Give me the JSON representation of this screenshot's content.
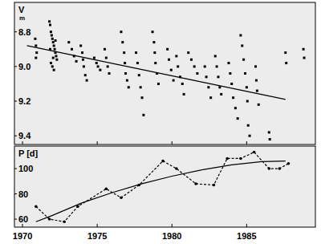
{
  "chart_data": [
    {
      "type": "scatter",
      "ylabel": "V",
      "ylabel_unit": "m",
      "xlim": [
        1969.46,
        1989.6
      ],
      "ylim": [
        9.45,
        8.63
      ],
      "xticks": [
        1970,
        1975,
        1980,
        1985
      ],
      "yticks": [
        8.8,
        {
          "value": 9,
          "label": "9.0"
        },
        9.2,
        9.4
      ],
      "tick_labels": "y",
      "series": [
        {
          "type": "scatter",
          "marker": "square",
          "color": "#000000",
          "x": [
            1970.85,
            1970.9,
            1970.95,
            1970.9,
            1971.8,
            1971.85,
            1971.9,
            1971.95,
            1972.0,
            1972.05,
            1972.1,
            1972.15,
            1972.2,
            1972.25,
            1972.3,
            1971.9,
            1972.0,
            1972.1,
            1972.2,
            1971.85,
            1972.05,
            1973.1,
            1973.3,
            1973.45,
            1973.6,
            1973.9,
            1974.0,
            1974.05,
            1974.1,
            1974.2,
            1974.3,
            1974.8,
            1974.95,
            1975.05,
            1975.2,
            1975.5,
            1975.6,
            1975.7,
            1975.8,
            1976.6,
            1976.7,
            1976.8,
            1976.85,
            1976.9,
            1977.0,
            1977.1,
            1977.6,
            1977.7,
            1977.8,
            1977.9,
            1978.0,
            1978.1,
            1978.7,
            1978.8,
            1978.85,
            1978.9,
            1979.0,
            1979.1,
            1979.7,
            1979.8,
            1979.95,
            1980.1,
            1980.3,
            1980.4,
            1980.55,
            1980.7,
            1980.8,
            1981.1,
            1981.3,
            1981.5,
            1981.7,
            1982.2,
            1982.3,
            1982.45,
            1982.6,
            1982.9,
            1983.0,
            1983.1,
            1983.2,
            1983.3,
            1983.8,
            1983.9,
            1984.0,
            1984.1,
            1984.25,
            1984.4,
            1984.6,
            1984.7,
            1984.8,
            1984.9,
            1985.0,
            1985.05,
            1985.1,
            1985.2,
            1985.6,
            1985.65,
            1985.7,
            1985.8,
            1986.5,
            1986.55,
            1987.6,
            1987.65,
            1988.8,
            1988.85
          ],
          "values": [
            8.84,
            8.88,
            8.92,
            8.95,
            8.74,
            8.76,
            8.8,
            8.82,
            8.84,
            8.86,
            8.88,
            8.9,
            8.92,
            8.94,
            8.96,
            8.98,
            9.0,
            9.02,
            8.85,
            8.9,
            8.95,
            8.86,
            8.9,
            8.94,
            8.97,
            8.88,
            8.92,
            8.96,
            9.0,
            9.05,
            9.08,
            8.95,
            8.98,
            9.0,
            9.02,
            8.9,
            8.95,
            9.0,
            9.04,
            8.8,
            8.86,
            8.92,
            8.98,
            9.04,
            9.08,
            9.12,
            8.92,
            8.98,
            9.05,
            9.12,
            9.18,
            9.28,
            8.8,
            8.86,
            8.92,
            8.98,
            9.04,
            9.1,
            8.9,
            8.96,
            9.02,
            9.08,
            8.94,
            9.0,
            9.06,
            9.1,
            9.16,
            8.92,
            8.96,
            9.0,
            9.04,
            9.0,
            9.06,
            9.12,
            9.18,
            8.94,
            9.0,
            9.06,
            9.12,
            9.16,
            8.98,
            9.04,
            9.1,
            9.18,
            9.24,
            9.3,
            8.82,
            8.88,
            8.96,
            9.04,
            9.12,
            9.2,
            9.34,
            9.4,
            9.0,
            9.08,
            9.14,
            9.22,
            9.38,
            9.42,
            8.92,
            8.98,
            8.9,
            8.95
          ]
        },
        {
          "type": "line",
          "line_style": "solid",
          "color": "#000000",
          "x": [
            1970.3,
            1987.6
          ],
          "values": [
            8.88,
            9.19
          ]
        }
      ]
    },
    {
      "type": "line",
      "ylabel": "P [d]",
      "xlim": [
        1969.46,
        1989.6
      ],
      "ylim": [
        53.7,
        117.8
      ],
      "xticks": [
        1970,
        1975,
        1980,
        1985
      ],
      "yticks": [
        60,
        80,
        100
      ],
      "series": [
        {
          "type": "line",
          "line_style": "dashed",
          "marker": "circle",
          "color": "#000000",
          "x": [
            1970.9,
            1971.8,
            1972.8,
            1973.7,
            1975.6,
            1976.6,
            1977.8,
            1979.4,
            1980.3,
            1981.6,
            1982.8,
            1983.7,
            1984.6,
            1985.5,
            1986.5,
            1987.2,
            1987.8
          ],
          "values": [
            70,
            60,
            58,
            70,
            84,
            77,
            87,
            106,
            100,
            88,
            87,
            108,
            108,
            113,
            100,
            100,
            104
          ]
        },
        {
          "type": "line",
          "line_style": "solid",
          "color": "#000000",
          "x": [
            1970.9,
            1972,
            1974,
            1976,
            1978,
            1980,
            1982,
            1984,
            1986,
            1987.6
          ],
          "values": [
            58,
            63,
            73,
            81,
            88,
            94,
            99,
            103,
            105.5,
            106
          ]
        }
      ]
    }
  ]
}
